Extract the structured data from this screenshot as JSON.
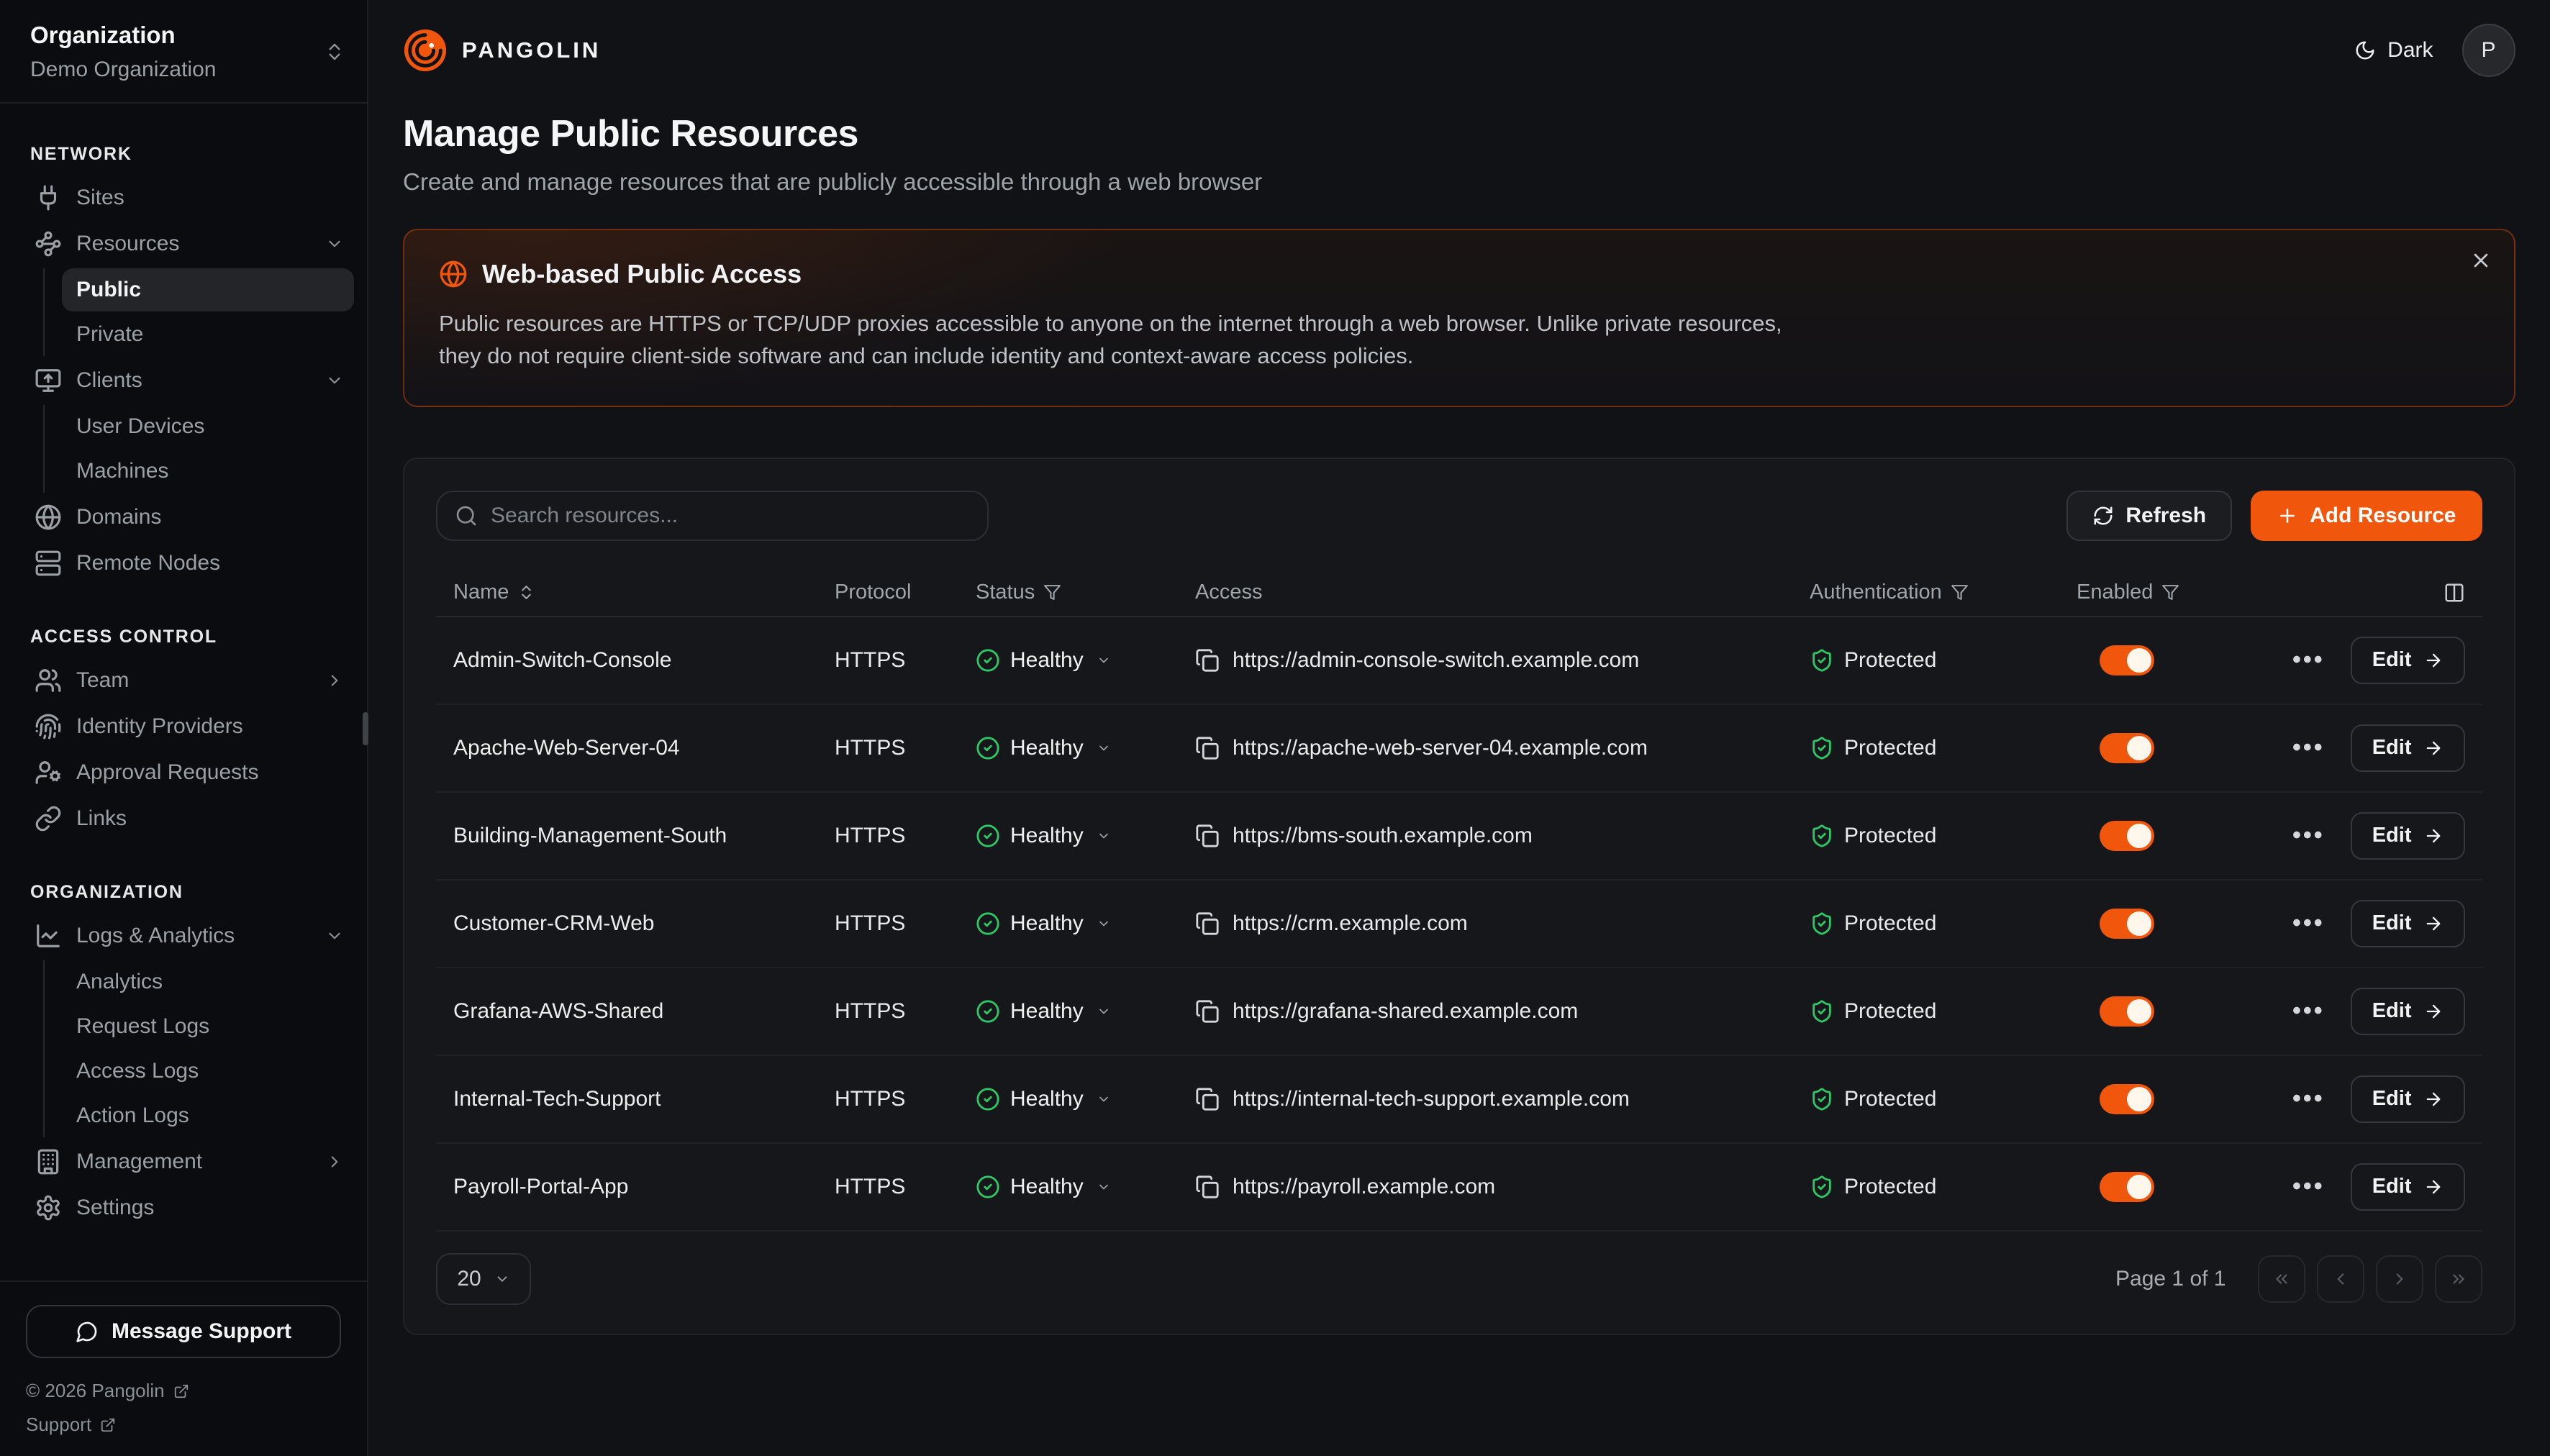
{
  "colors": {
    "accent": "#F1560D",
    "success": "#2FC665"
  },
  "brand": {
    "name": "PANGOLIN"
  },
  "topbar": {
    "theme_label": "Dark",
    "avatar_initial": "P"
  },
  "org_switcher": {
    "title": "Organization",
    "value": "Demo Organization"
  },
  "sidebar": {
    "sections": [
      {
        "label": "NETWORK",
        "items": [
          {
            "label": "Sites",
            "icon": "plug"
          },
          {
            "label": "Resources",
            "icon": "waypoints",
            "chevron": "down"
          },
          {
            "label": "Public",
            "sub": true,
            "active": true
          },
          {
            "label": "Private",
            "sub": true
          },
          {
            "label": "Clients",
            "icon": "monitor-up",
            "chevron": "down"
          },
          {
            "label": "User Devices",
            "sub": true
          },
          {
            "label": "Machines",
            "sub": true
          },
          {
            "label": "Domains",
            "icon": "globe"
          },
          {
            "label": "Remote Nodes",
            "icon": "server"
          }
        ]
      },
      {
        "label": "ACCESS CONTROL",
        "items": [
          {
            "label": "Team",
            "icon": "users",
            "chevron": "right"
          },
          {
            "label": "Identity Providers",
            "icon": "fingerprint"
          },
          {
            "label": "Approval Requests",
            "icon": "user-cog"
          },
          {
            "label": "Links",
            "icon": "link"
          }
        ]
      },
      {
        "label": "ORGANIZATION",
        "items": [
          {
            "label": "Logs & Analytics",
            "icon": "chart",
            "chevron": "down"
          },
          {
            "label": "Analytics",
            "sub": true
          },
          {
            "label": "Request Logs",
            "sub": true
          },
          {
            "label": "Access Logs",
            "sub": true
          },
          {
            "label": "Action Logs",
            "sub": true
          },
          {
            "label": "Management",
            "icon": "building",
            "chevron": "right"
          },
          {
            "label": "Settings",
            "icon": "settings"
          }
        ]
      }
    ],
    "support_button": "Message Support",
    "copyright": "© 2026 Pangolin",
    "support_link": "Support"
  },
  "page": {
    "title": "Manage Public Resources",
    "subtitle": "Create and manage resources that are publicly accessible through a web browser"
  },
  "banner": {
    "title": "Web-based Public Access",
    "line1": "Public resources are HTTPS or TCP/UDP proxies accessible to anyone on the internet through a web browser. Unlike private resources,",
    "line2": "they do not require client-side software and can include identity and context-aware access policies."
  },
  "toolbar": {
    "search_placeholder": "Search resources...",
    "refresh": "Refresh",
    "add_resource": "Add Resource"
  },
  "table": {
    "headers": {
      "name": "Name",
      "protocol": "Protocol",
      "status": "Status",
      "access": "Access",
      "auth": "Authentication",
      "enabled": "Enabled"
    },
    "edit_label": "Edit",
    "rows": [
      {
        "name": "Admin-Switch-Console",
        "protocol": "HTTPS",
        "status": "Healthy",
        "url": "https://admin-console-switch.example.com",
        "auth": "Protected",
        "enabled": true
      },
      {
        "name": "Apache-Web-Server-04",
        "protocol": "HTTPS",
        "status": "Healthy",
        "url": "https://apache-web-server-04.example.com",
        "auth": "Protected",
        "enabled": true
      },
      {
        "name": "Building-Management-South",
        "protocol": "HTTPS",
        "status": "Healthy",
        "url": "https://bms-south.example.com",
        "auth": "Protected",
        "enabled": true
      },
      {
        "name": "Customer-CRM-Web",
        "protocol": "HTTPS",
        "status": "Healthy",
        "url": "https://crm.example.com",
        "auth": "Protected",
        "enabled": true
      },
      {
        "name": "Grafana-AWS-Shared",
        "protocol": "HTTPS",
        "status": "Healthy",
        "url": "https://grafana-shared.example.com",
        "auth": "Protected",
        "enabled": true
      },
      {
        "name": "Internal-Tech-Support",
        "protocol": "HTTPS",
        "status": "Healthy",
        "url": "https://internal-tech-support.example.com",
        "auth": "Protected",
        "enabled": true
      },
      {
        "name": "Payroll-Portal-App",
        "protocol": "HTTPS",
        "status": "Healthy",
        "url": "https://payroll.example.com",
        "auth": "Protected",
        "enabled": true
      }
    ]
  },
  "pagination": {
    "page_size": "20",
    "label": "Page 1 of 1"
  }
}
